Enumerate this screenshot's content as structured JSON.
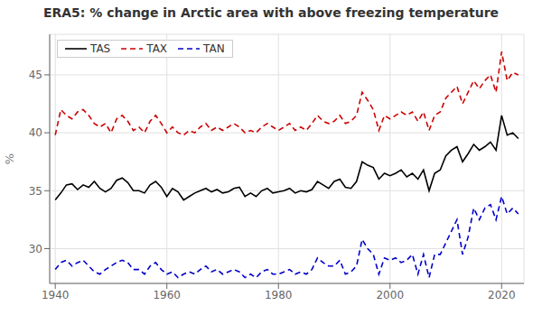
{
  "chart_data": {
    "type": "line",
    "title": "ERA5: % change in Arctic area with above freezing temperature",
    "ylabel": "%",
    "x": [
      1940,
      1941,
      1942,
      1943,
      1944,
      1945,
      1946,
      1947,
      1948,
      1949,
      1950,
      1951,
      1952,
      1953,
      1954,
      1955,
      1956,
      1957,
      1958,
      1959,
      1960,
      1961,
      1962,
      1963,
      1964,
      1965,
      1966,
      1967,
      1968,
      1969,
      1970,
      1971,
      1972,
      1973,
      1974,
      1975,
      1976,
      1977,
      1978,
      1979,
      1980,
      1981,
      1982,
      1983,
      1984,
      1985,
      1986,
      1987,
      1988,
      1989,
      1990,
      1991,
      1992,
      1993,
      1994,
      1995,
      1996,
      1997,
      1998,
      1999,
      2000,
      2001,
      2002,
      2003,
      2004,
      2005,
      2006,
      2007,
      2008,
      2009,
      2010,
      2011,
      2012,
      2013,
      2014,
      2015,
      2016,
      2017,
      2018,
      2019,
      2020,
      2021,
      2022,
      2023
    ],
    "series": [
      {
        "name": "TAS",
        "color": "#000000",
        "line_style": "solid",
        "values": [
          34.2,
          34.8,
          35.5,
          35.6,
          35.1,
          35.5,
          35.3,
          35.8,
          35.2,
          34.9,
          35.2,
          35.9,
          36.1,
          35.7,
          35.0,
          35.0,
          34.8,
          35.5,
          35.8,
          35.3,
          34.5,
          35.2,
          34.9,
          34.2,
          34.5,
          34.8,
          35.0,
          35.2,
          34.9,
          35.1,
          34.8,
          34.9,
          35.2,
          35.3,
          34.5,
          34.8,
          34.5,
          35.0,
          35.2,
          34.8,
          34.9,
          35.0,
          35.2,
          34.8,
          35.0,
          34.9,
          35.1,
          35.8,
          35.5,
          35.2,
          35.8,
          36.0,
          35.3,
          35.2,
          35.8,
          37.5,
          37.2,
          37.0,
          36.0,
          36.5,
          36.3,
          36.5,
          36.8,
          36.2,
          36.5,
          36.0,
          36.8,
          35.0,
          36.5,
          36.8,
          38.0,
          38.5,
          38.8,
          37.5,
          38.2,
          39.0,
          38.5,
          38.8,
          39.2,
          38.5,
          41.5,
          39.8,
          40.0,
          39.5
        ]
      },
      {
        "name": "TAX",
        "color": "#cc0000",
        "line_style": "dashed",
        "values": [
          39.8,
          42.0,
          41.5,
          41.2,
          41.8,
          42.0,
          41.5,
          40.8,
          40.5,
          40.8,
          40.0,
          41.2,
          41.5,
          41.0,
          40.2,
          40.5,
          40.0,
          41.0,
          41.5,
          40.8,
          40.0,
          40.5,
          40.0,
          39.8,
          40.2,
          40.0,
          40.5,
          40.8,
          40.2,
          40.5,
          40.2,
          40.5,
          40.8,
          40.5,
          40.0,
          40.2,
          40.0,
          40.5,
          40.8,
          40.5,
          40.2,
          40.5,
          40.8,
          40.2,
          40.5,
          40.2,
          40.8,
          41.5,
          41.0,
          40.8,
          41.0,
          41.5,
          40.8,
          41.0,
          41.5,
          43.5,
          42.8,
          42.0,
          40.2,
          41.5,
          41.2,
          41.5,
          41.8,
          41.5,
          41.8,
          41.0,
          41.8,
          40.2,
          41.5,
          41.8,
          43.0,
          43.5,
          44.0,
          42.5,
          43.5,
          44.5,
          43.8,
          44.5,
          45.0,
          43.5,
          47.0,
          44.5,
          45.2,
          45.0
        ]
      },
      {
        "name": "TAN",
        "color": "#0000cc",
        "line_style": "dashed",
        "values": [
          28.2,
          28.8,
          29.0,
          28.5,
          28.8,
          29.0,
          28.5,
          28.0,
          27.8,
          28.2,
          28.5,
          28.8,
          29.0,
          28.8,
          28.2,
          28.2,
          27.8,
          28.5,
          28.8,
          28.2,
          27.8,
          28.0,
          27.5,
          27.8,
          28.0,
          27.8,
          28.2,
          28.5,
          28.0,
          28.2,
          27.8,
          28.0,
          28.2,
          28.0,
          27.5,
          27.8,
          27.5,
          28.0,
          28.2,
          27.8,
          27.8,
          28.0,
          28.2,
          27.8,
          28.0,
          27.8,
          28.2,
          29.2,
          28.8,
          28.5,
          28.5,
          29.0,
          27.8,
          28.0,
          28.5,
          30.8,
          30.0,
          29.5,
          27.8,
          29.2,
          29.0,
          29.2,
          28.8,
          29.0,
          29.5,
          27.8,
          29.5,
          27.5,
          29.5,
          29.5,
          30.5,
          31.5,
          32.5,
          29.5,
          31.0,
          33.5,
          32.5,
          33.5,
          33.8,
          32.5,
          34.5,
          33.0,
          33.5,
          33.0
        ]
      }
    ],
    "xlim": [
      1939,
      2024
    ],
    "ylim": [
      27.0,
      48.5
    ],
    "xticks": [
      1940,
      1960,
      1980,
      2000,
      2020
    ],
    "yticks": [
      30,
      35,
      40,
      45
    ],
    "grid": true,
    "legend": "upper left"
  }
}
